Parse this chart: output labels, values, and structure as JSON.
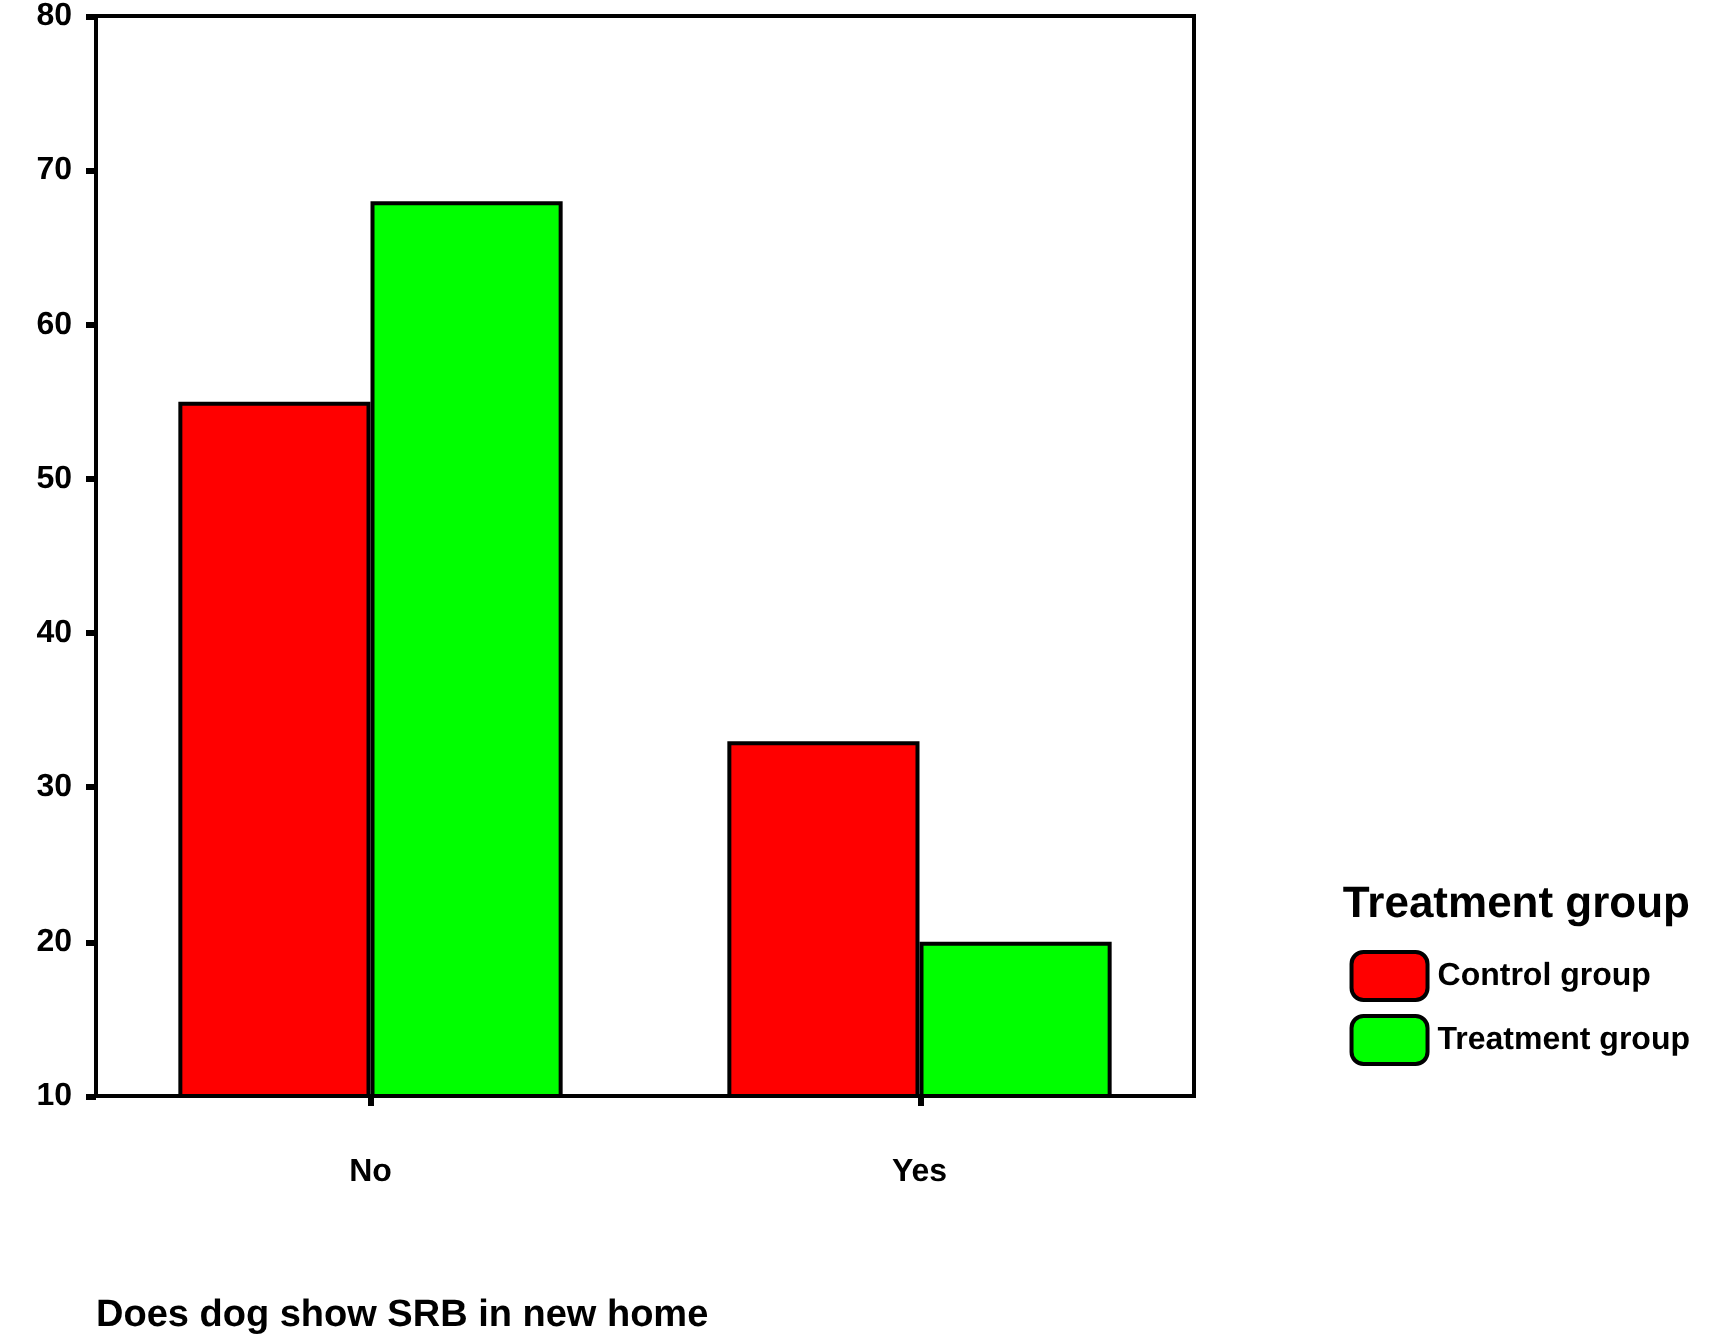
{
  "chart_data": {
    "type": "bar",
    "xlabel": "Does dog show SRB in new home",
    "legend_title": "Treatment group",
    "categories": [
      "No",
      "Yes"
    ],
    "series": [
      {
        "name": "Control group",
        "color": "#ff0000",
        "values": [
          55,
          33
        ]
      },
      {
        "name": "Treatment group",
        "color": "#00ff00",
        "values": [
          68,
          20
        ]
      }
    ],
    "ylim": [
      10,
      80
    ],
    "yticks": [
      10,
      20,
      30,
      40,
      50,
      60,
      70,
      80
    ],
    "grid": false,
    "legend": "right"
  }
}
